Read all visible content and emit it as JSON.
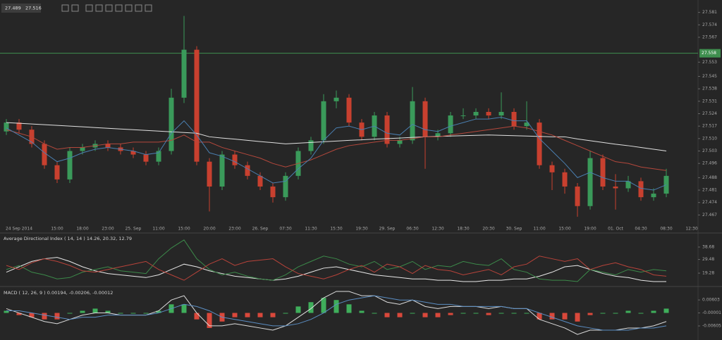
{
  "toolbar": {
    "bid": 27.489,
    "ask": 27.516
  },
  "chart_data": [
    {
      "type": "candlestick",
      "categories": [
        null,
        "24 Sep 2014",
        null,
        null,
        "15:00",
        null,
        "18:00",
        null,
        "23:00",
        null,
        "25. Sep",
        null,
        "11:00",
        null,
        "15:00",
        null,
        "20:00",
        null,
        "23:00",
        null,
        "26. Sep",
        null,
        "07:30",
        null,
        "11:30",
        null,
        "15:30",
        null,
        "19:30",
        null,
        "29. Sep",
        null,
        "06:30",
        null,
        "12:30",
        null,
        "18:30",
        null,
        "20:30",
        null,
        "30. Sep",
        null,
        "11:00",
        null,
        "15:00",
        null,
        "19:00",
        null,
        "01. Oct",
        null,
        "04:30",
        null,
        "08:30",
        null,
        "12:30"
      ],
      "open": [
        27.514,
        27.519,
        27.515,
        27.507,
        27.495,
        27.487,
        27.503,
        27.505,
        27.507,
        27.505,
        27.503,
        27.501,
        27.497,
        27.503,
        27.533,
        27.56,
        27.497,
        27.483,
        27.501,
        27.495,
        27.489,
        27.483,
        27.477,
        27.489,
        27.503,
        27.509,
        27.531,
        27.533,
        27.519,
        27.511,
        27.523,
        27.507,
        27.509,
        27.531,
        27.511,
        27.513,
        27.523,
        27.523,
        27.525,
        27.523,
        27.525,
        27.517,
        27.519,
        27.495,
        27.491,
        27.483,
        27.472,
        27.499,
        27.483,
        27.482,
        27.486,
        27.477,
        27.479,
        null,
        null
      ],
      "high": [
        27.521,
        27.521,
        27.517,
        27.509,
        27.497,
        27.505,
        27.507,
        27.509,
        27.509,
        27.507,
        27.505,
        27.503,
        27.505,
        27.538,
        27.579,
        27.562,
        27.499,
        27.503,
        27.503,
        27.497,
        27.491,
        27.485,
        27.491,
        27.505,
        27.511,
        27.535,
        27.537,
        27.535,
        27.521,
        27.525,
        27.525,
        27.511,
        27.539,
        27.533,
        27.515,
        27.525,
        27.527,
        27.527,
        27.527,
        27.536,
        27.527,
        27.531,
        27.521,
        27.497,
        27.493,
        27.485,
        27.503,
        27.501,
        27.49,
        27.489,
        27.488,
        27.482,
        27.493,
        null,
        null
      ],
      "low": [
        27.512,
        27.513,
        27.505,
        27.493,
        27.485,
        27.485,
        27.501,
        27.503,
        27.503,
        27.501,
        27.499,
        27.495,
        27.495,
        27.501,
        27.53,
        27.495,
        27.469,
        27.481,
        27.493,
        27.487,
        27.481,
        27.474,
        27.475,
        27.487,
        27.501,
        27.507,
        27.527,
        27.517,
        27.509,
        27.509,
        27.505,
        27.505,
        27.507,
        27.493,
        27.509,
        27.511,
        27.521,
        27.521,
        27.521,
        27.521,
        27.515,
        27.515,
        27.493,
        27.481,
        27.479,
        27.466,
        27.47,
        27.481,
        27.47,
        27.48,
        27.475,
        27.475,
        27.477,
        null,
        null
      ],
      "close": [
        27.519,
        27.515,
        27.507,
        27.495,
        27.487,
        27.503,
        27.505,
        27.507,
        27.505,
        27.503,
        27.501,
        27.497,
        27.503,
        27.533,
        27.56,
        27.497,
        27.483,
        27.501,
        27.495,
        27.489,
        27.483,
        27.477,
        27.489,
        27.503,
        27.509,
        27.531,
        27.533,
        27.519,
        27.511,
        27.523,
        27.507,
        27.509,
        27.531,
        27.511,
        27.513,
        27.523,
        27.523,
        27.525,
        27.523,
        27.525,
        27.517,
        27.519,
        27.495,
        27.491,
        27.483,
        27.472,
        27.499,
        27.483,
        27.482,
        27.486,
        27.477,
        27.479,
        27.489,
        null,
        null
      ],
      "up_color": "#3a9a5a",
      "down_color": "#c8402f",
      "series": [
        {
          "color": "#e0e0e0",
          "values": [
            27.519,
            27.5186,
            27.5182,
            27.5178,
            27.5174,
            27.517,
            27.5166,
            27.5162,
            27.5158,
            27.5154,
            27.515,
            27.5146,
            27.5142,
            27.5138,
            27.5134,
            27.513,
            27.511,
            27.5103,
            27.5097,
            27.509,
            27.5083,
            27.5077,
            27.507,
            27.5074,
            27.5078,
            27.5082,
            27.5086,
            27.509,
            27.5093,
            27.5097,
            27.51,
            27.5103,
            27.5107,
            27.511,
            27.5112,
            27.5114,
            27.5116,
            27.5118,
            27.512,
            27.5118,
            27.5116,
            27.5114,
            27.5112,
            27.511,
            27.511,
            27.5098,
            27.5088,
            27.5078,
            27.5068,
            27.506,
            27.505,
            27.504,
            27.503,
            null,
            null
          ]
        },
        {
          "color": "#b5483c",
          "values": [
            27.515,
            27.513,
            27.511,
            27.507,
            27.504,
            27.505,
            27.505,
            27.506,
            27.507,
            27.507,
            27.508,
            27.508,
            27.508,
            27.509,
            27.512,
            27.508,
            27.508,
            27.505,
            27.503,
            27.501,
            27.499,
            27.496,
            27.494,
            27.496,
            27.498,
            27.501,
            27.504,
            27.506,
            27.507,
            27.508,
            27.509,
            27.509,
            27.51,
            27.511,
            27.511,
            27.512,
            27.513,
            27.514,
            27.515,
            27.516,
            27.517,
            27.516,
            27.514,
            27.512,
            27.509,
            27.506,
            27.503,
            27.5,
            27.497,
            27.496,
            27.494,
            27.493,
            27.492,
            null,
            null
          ]
        },
        {
          "color": "#4a7fb0",
          "values": [
            27.516,
            27.512,
            27.508,
            27.502,
            27.497,
            27.499,
            27.502,
            27.504,
            27.505,
            27.504,
            27.503,
            27.501,
            27.502,
            27.513,
            27.52,
            27.512,
            27.502,
            27.5,
            27.497,
            27.493,
            27.489,
            27.485,
            27.486,
            27.493,
            27.499,
            27.509,
            27.516,
            27.517,
            27.515,
            27.517,
            27.513,
            27.512,
            27.518,
            27.515,
            27.514,
            27.517,
            27.519,
            27.521,
            27.521,
            27.522,
            27.52,
            27.52,
            27.51,
            27.503,
            27.496,
            27.488,
            27.491,
            27.488,
            27.486,
            27.486,
            27.482,
            27.481,
            27.484,
            null,
            null
          ]
        }
      ],
      "hline": {
        "value": 27.558,
        "color": "#3f8f4f"
      },
      "ylim": [
        27.462,
        27.586
      ],
      "yticks": [
        27.581,
        27.574,
        27.567,
        27.553,
        27.545,
        27.538,
        27.531,
        27.524,
        27.517,
        {
          "value": 27.51,
          "label": "27.510"
        },
        27.503,
        27.496,
        27.488,
        27.481,
        27.474,
        27.467
      ]
    },
    {
      "type": "line",
      "title": "Average Directional Index ( 14, 14 ) 14.26, 20.32, 12.79",
      "series": [
        {
          "color": "#e8e8e8",
          "values": [
            20,
            24,
            28,
            30,
            31,
            28,
            24,
            21,
            19,
            18,
            17,
            16,
            18,
            22,
            26,
            24,
            21,
            19,
            17,
            16,
            15,
            14,
            15,
            17,
            20,
            23,
            24,
            22,
            20,
            18,
            17,
            16,
            15,
            15,
            14,
            14,
            13,
            13,
            14,
            14,
            15,
            15,
            17,
            20,
            24,
            25,
            22,
            19,
            17,
            16,
            14,
            13,
            13
          ]
        },
        {
          "color": "#3c8a4a",
          "values": [
            22,
            25,
            20,
            18,
            15,
            16,
            20,
            22,
            24,
            21,
            20,
            19,
            30,
            38,
            44,
            30,
            22,
            18,
            20,
            17,
            15,
            14,
            18,
            24,
            28,
            32,
            30,
            26,
            24,
            28,
            22,
            24,
            28,
            22,
            25,
            24,
            28,
            26,
            25,
            30,
            22,
            20,
            15,
            14,
            14,
            13,
            22,
            20,
            18,
            22,
            20,
            22,
            21
          ]
        },
        {
          "color": "#b8433a",
          "values": [
            25,
            22,
            27,
            30,
            28,
            25,
            21,
            20,
            22,
            24,
            26,
            28,
            22,
            18,
            14,
            20,
            26,
            30,
            25,
            28,
            29,
            30,
            24,
            19,
            17,
            15,
            18,
            22,
            25,
            20,
            26,
            24,
            19,
            25,
            22,
            21,
            18,
            20,
            22,
            18,
            24,
            26,
            32,
            30,
            28,
            30,
            22,
            25,
            27,
            24,
            22,
            18,
            17
          ]
        }
      ],
      "ylim": [
        10.4,
        46
      ],
      "yticks": [
        38.68,
        29.48,
        19.28
      ]
    },
    {
      "type": "combo",
      "title": "MACD ( 12, 26, 9 ) 0.00194, -0.00206, -0.00012",
      "series": [
        {
          "kind": "bar",
          "up_color": "#3fae5b",
          "down_color": "#d9483b",
          "values": [
            0.001,
            -0.001,
            -0.002,
            -0.003,
            -0.003,
            0,
            0.001,
            0.002,
            0.001,
            0,
            0,
            0,
            0.001,
            0.004,
            0.004,
            -0.003,
            -0.007,
            -0.004,
            -0.002,
            -0.002,
            -0.002,
            -0.002,
            0,
            0.003,
            0.005,
            0.007,
            0.006,
            0.004,
            0.001,
            0,
            -0.002,
            -0.002,
            0,
            -0.002,
            -0.002,
            -0.001,
            0,
            0,
            -0.001,
            0,
            0,
            0,
            -0.003,
            -0.003,
            -0.003,
            -0.004,
            -0.001,
            0,
            0,
            0.001,
            0,
            0.001,
            0.002
          ]
        },
        {
          "kind": "line",
          "color": "#dddddd",
          "values": [
            0.002,
            0,
            -0.002,
            -0.004,
            -0.005,
            -0.003,
            -0.001,
            0,
            0,
            -0.001,
            -0.001,
            -0.001,
            0.001,
            0.006,
            0.008,
            0,
            -0.006,
            -0.006,
            -0.005,
            -0.006,
            -0.007,
            -0.008,
            -0.006,
            -0.002,
            0.002,
            0.007,
            0.01,
            0.01,
            0.008,
            0.008,
            0.005,
            0.004,
            0.006,
            0.003,
            0.002,
            0.003,
            0.003,
            0.003,
            0.002,
            0.003,
            0.002,
            0.002,
            -0.003,
            -0.005,
            -0.007,
            -0.01,
            -0.008,
            -0.008,
            -0.008,
            -0.007,
            -0.007,
            -0.006,
            -0.004
          ]
        },
        {
          "kind": "line",
          "color": "#5b8ec4",
          "values": [
            0.001,
            0.001,
            0,
            -0.001,
            -0.002,
            -0.003,
            -0.002,
            -0.002,
            -0.001,
            -0.001,
            -0.001,
            -0.001,
            0,
            0.002,
            0.004,
            0.003,
            0.001,
            -0.002,
            -0.003,
            -0.004,
            -0.005,
            -0.006,
            -0.006,
            -0.005,
            -0.003,
            0,
            0.004,
            0.006,
            0.007,
            0.008,
            0.007,
            0.006,
            0.006,
            0.005,
            0.004,
            0.004,
            0.003,
            0.003,
            0.003,
            0.003,
            0.002,
            0.002,
            0,
            -0.002,
            -0.004,
            -0.006,
            -0.007,
            -0.008,
            -0.008,
            -0.008,
            -0.007,
            -0.007,
            -0.006
          ]
        }
      ],
      "ylim": [
        -0.0116,
        0.0113
      ],
      "yticks": [
        0.00603,
        -1e-05,
        -0.00605
      ]
    }
  ]
}
